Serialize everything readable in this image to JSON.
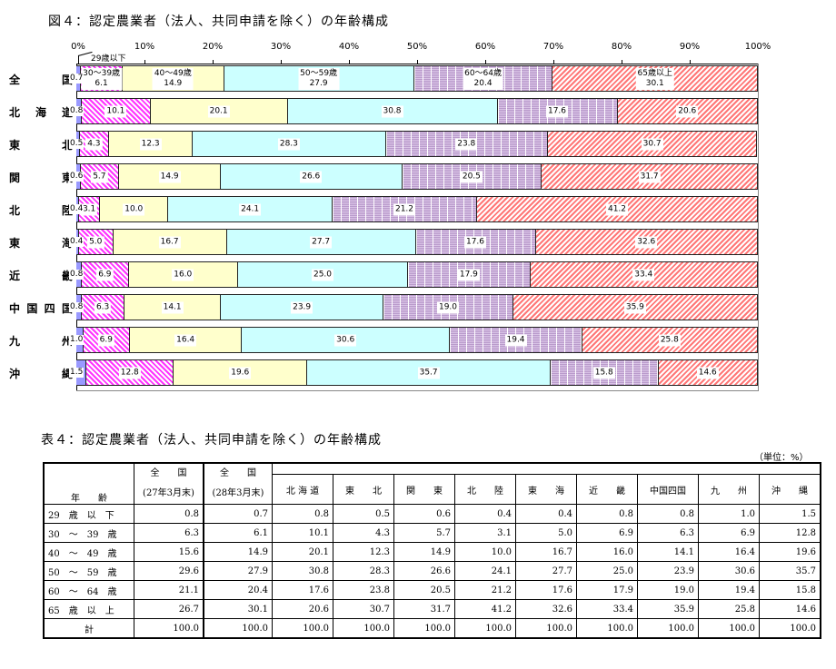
{
  "chart_title": "図４：認定農業者（法人、共同申請を除く）の年齢構成",
  "table_title": "表４：認定農業者（法人、共同申請を除く）の年齢構成",
  "unit_label": "（単位：%）",
  "axis_ticks": [
    "0%",
    "10%",
    "20%",
    "30%",
    "40%",
    "50%",
    "60%",
    "70%",
    "80%",
    "90%",
    "100%"
  ],
  "callout_label": "29歳以下",
  "colors": {
    "age29": "#9999ff",
    "age30_39": "#ff33ff",
    "age40_49": "#ffffcc",
    "age50_59": "#ccffff",
    "age60_64": "#c8a8d8",
    "age65": "#ff7777"
  },
  "chart_data": {
    "type": "bar",
    "orientation": "horizontal-stacked-100",
    "title": "図４：認定農業者（法人、共同申請を除く）の年齢構成",
    "xlim": [
      0,
      100
    ],
    "xlabel": "",
    "ylabel": "",
    "legend_in_bars": [
      "29歳以下",
      "30～39歳",
      "40～49歳",
      "50～59歳",
      "60～64歳",
      "65歳以上"
    ],
    "categories": [
      "全　国",
      "北海道",
      "東　北",
      "関　東",
      "北　陸",
      "東　海",
      "近　畿",
      "中国四国",
      "九　州",
      "沖　縄"
    ],
    "series": [
      {
        "name": "29歳以下",
        "values": [
          0.7,
          0.8,
          0.5,
          0.6,
          0.4,
          0.4,
          0.8,
          0.8,
          1.0,
          1.5
        ]
      },
      {
        "name": "30～39歳",
        "values": [
          6.1,
          10.1,
          4.3,
          5.7,
          3.1,
          5.0,
          6.9,
          6.3,
          6.9,
          12.8
        ]
      },
      {
        "name": "40～49歳",
        "values": [
          14.9,
          20.1,
          12.3,
          14.9,
          10.0,
          16.7,
          16.0,
          14.1,
          16.4,
          19.6
        ]
      },
      {
        "name": "50～59歳",
        "values": [
          27.9,
          30.8,
          28.3,
          26.6,
          24.1,
          27.7,
          25.0,
          23.9,
          30.6,
          35.7
        ]
      },
      {
        "name": "60～64歳",
        "values": [
          20.4,
          17.6,
          23.8,
          20.5,
          21.2,
          17.6,
          17.9,
          19.0,
          19.4,
          15.8
        ]
      },
      {
        "name": "65歳以上",
        "values": [
          30.1,
          20.6,
          30.7,
          31.7,
          41.2,
          32.6,
          33.4,
          35.9,
          25.8,
          14.6
        ]
      }
    ],
    "grid": false
  },
  "chart_rows": [
    {
      "label": "全　国",
      "labels_first": [
        "30～39歳",
        "40～49歳",
        "50～59歳",
        "60～64歳",
        "65歳以上"
      ],
      "v": [
        "0.7",
        "6.1",
        "14.9",
        "27.9",
        "20.4",
        "30.1"
      ]
    },
    {
      "label": "北海道",
      "v": [
        "0.8",
        "10.1",
        "20.1",
        "30.8",
        "17.6",
        "20.6"
      ]
    },
    {
      "label": "東　北",
      "v": [
        "0.5",
        "4.3",
        "12.3",
        "28.3",
        "23.8",
        "30.7"
      ]
    },
    {
      "label": "関　東",
      "v": [
        "0.6",
        "5.7",
        "14.9",
        "26.6",
        "20.5",
        "31.7"
      ]
    },
    {
      "label": "北　陸",
      "v": [
        "0.4",
        "3.1",
        "10.0",
        "24.1",
        "21.2",
        "41.2"
      ]
    },
    {
      "label": "東　海",
      "v": [
        "0.4",
        "5.0",
        "16.7",
        "27.7",
        "17.6",
        "32.6"
      ]
    },
    {
      "label": "近　畿",
      "v": [
        "0.8",
        "6.9",
        "16.0",
        "25.0",
        "17.9",
        "33.4"
      ]
    },
    {
      "label": "中国四国",
      "v": [
        "0.8",
        "6.3",
        "14.1",
        "23.9",
        "19.0",
        "35.9"
      ]
    },
    {
      "label": "九　州",
      "v": [
        "1.0",
        "6.9",
        "16.4",
        "30.6",
        "19.4",
        "25.8"
      ]
    },
    {
      "label": "沖　縄",
      "v": [
        "1.5",
        "12.8",
        "19.6",
        "35.7",
        "15.8",
        "14.6"
      ]
    }
  ],
  "table": {
    "corner_label": "年　　齢",
    "national_27_top": "全　　国",
    "national_27_bottom": "(27年3月末)",
    "national_28_top": "全　　国",
    "national_28_bottom": "(28年3月末)",
    "regions": [
      "北 海 道",
      "東　　北",
      "関　　東",
      "北　　陸",
      "東　　海",
      "近　　畿",
      "中国四国",
      "九　　州",
      "沖　　縄"
    ],
    "rows": [
      {
        "label": "29　歳　以　下",
        "values": [
          "0.8",
          "0.7",
          "0.8",
          "0.5",
          "0.6",
          "0.4",
          "0.4",
          "0.8",
          "0.8",
          "1.0",
          "1.5"
        ]
      },
      {
        "label": "30　～　39　歳",
        "values": [
          "6.3",
          "6.1",
          "10.1",
          "4.3",
          "5.7",
          "3.1",
          "5.0",
          "6.9",
          "6.3",
          "6.9",
          "12.8"
        ]
      },
      {
        "label": "40　～　49　歳",
        "values": [
          "15.6",
          "14.9",
          "20.1",
          "12.3",
          "14.9",
          "10.0",
          "16.7",
          "16.0",
          "14.1",
          "16.4",
          "19.6"
        ]
      },
      {
        "label": "50　～　59　歳",
        "values": [
          "29.6",
          "27.9",
          "30.8",
          "28.3",
          "26.6",
          "24.1",
          "27.7",
          "25.0",
          "23.9",
          "30.6",
          "35.7"
        ]
      },
      {
        "label": "60　～　64　歳",
        "values": [
          "21.1",
          "20.4",
          "17.6",
          "23.8",
          "20.5",
          "21.2",
          "17.6",
          "17.9",
          "19.0",
          "19.4",
          "15.8"
        ]
      },
      {
        "label": "65　歳　以　上",
        "values": [
          "26.7",
          "30.1",
          "20.6",
          "30.7",
          "31.7",
          "41.2",
          "32.6",
          "33.4",
          "35.9",
          "25.8",
          "14.6"
        ]
      }
    ],
    "total": {
      "label": "計",
      "values": [
        "100.0",
        "100.0",
        "100.0",
        "100.0",
        "100.0",
        "100.0",
        "100.0",
        "100.0",
        "100.0",
        "100.0",
        "100.0"
      ]
    }
  }
}
